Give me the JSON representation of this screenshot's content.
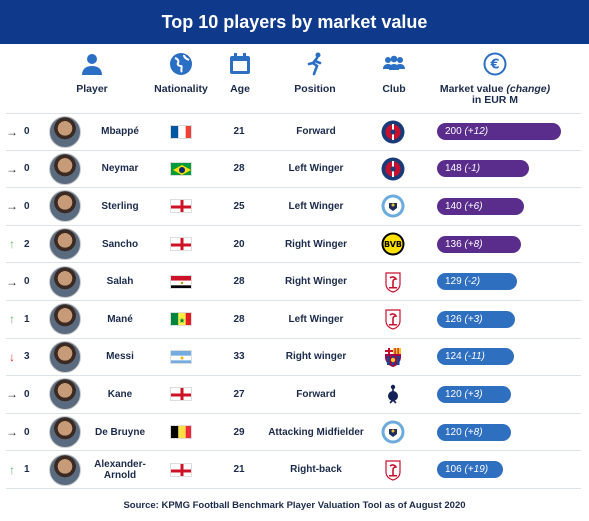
{
  "title": "Top 10 players by market value",
  "columns": {
    "player": "Player",
    "nationality": "Nationality",
    "age": "Age",
    "position": "Position",
    "club": "Club",
    "value_line1": "Market value",
    "value_change": "(change)",
    "value_line2": "in EUR M"
  },
  "icons": [
    "person-icon",
    "globe-icon",
    "calendar-icon",
    "runner-icon",
    "group-icon",
    "euro-icon"
  ],
  "colors": {
    "title_bg": "#0f3a8c",
    "up": "#5cb85c",
    "down": "#d9342b",
    "same": "#333333",
    "bar_purple": "#5a2d8c",
    "bar_blue": "#2f6fbf"
  },
  "players": [
    {
      "arrow": "→",
      "dir": "same",
      "change_rank": "0",
      "name": "Mbappé",
      "flag": "france",
      "age": "21",
      "position": "Forward",
      "club": "psg",
      "value": 200,
      "value_text": "200",
      "change_text": "(+12)",
      "bar_color": "purple"
    },
    {
      "arrow": "→",
      "dir": "same",
      "change_rank": "0",
      "name": "Neymar",
      "flag": "brazil",
      "age": "28",
      "position": "Left Winger",
      "club": "psg",
      "value": 148,
      "value_text": "148",
      "change_text": "(-1)",
      "bar_color": "purple"
    },
    {
      "arrow": "→",
      "dir": "same",
      "change_rank": "0",
      "name": "Sterling",
      "flag": "england",
      "age": "25",
      "position": "Left Winger",
      "club": "mancity",
      "value": 140,
      "value_text": "140",
      "change_text": "(+6)",
      "bar_color": "purple"
    },
    {
      "arrow": "↑",
      "dir": "up",
      "change_rank": "2",
      "name": "Sancho",
      "flag": "england",
      "age": "20",
      "position": "Right Winger",
      "club": "dortmund",
      "value": 136,
      "value_text": "136",
      "change_text": "(+8)",
      "bar_color": "purple"
    },
    {
      "arrow": "→",
      "dir": "same",
      "change_rank": "0",
      "name": "Salah",
      "flag": "egypt",
      "age": "28",
      "position": "Right Winger",
      "club": "liverpool",
      "value": 129,
      "value_text": "129",
      "change_text": "(-2)",
      "bar_color": "blue"
    },
    {
      "arrow": "↑",
      "dir": "up",
      "change_rank": "1",
      "name": "Mané",
      "flag": "senegal",
      "age": "28",
      "position": "Left Winger",
      "club": "liverpool",
      "value": 126,
      "value_text": "126",
      "change_text": "(+3)",
      "bar_color": "blue"
    },
    {
      "arrow": "↓",
      "dir": "down",
      "change_rank": "3",
      "name": "Messi",
      "flag": "argentina",
      "age": "33",
      "position": "Right winger",
      "club": "barcelona",
      "value": 124,
      "value_text": "124",
      "change_text": "(-11)",
      "bar_color": "blue"
    },
    {
      "arrow": "→",
      "dir": "same",
      "change_rank": "0",
      "name": "Kane",
      "flag": "england",
      "age": "27",
      "position": "Forward",
      "club": "tottenham",
      "value": 120,
      "value_text": "120",
      "change_text": "(+3)",
      "bar_color": "blue"
    },
    {
      "arrow": "→",
      "dir": "same",
      "change_rank": "0",
      "name": "De Bruyne",
      "flag": "belgium",
      "age": "29",
      "position": "Attacking Midfielder",
      "club": "mancity",
      "value": 120,
      "value_text": "120",
      "change_text": "(+8)",
      "bar_color": "blue"
    },
    {
      "arrow": "↑",
      "dir": "up",
      "change_rank": "1",
      "name": "Alexander-Arnold",
      "flag": "england",
      "age": "21",
      "position": "Right-back",
      "club": "liverpool",
      "value": 106,
      "value_text": "106",
      "change_text": "(+19)",
      "bar_color": "blue"
    }
  ],
  "source": "Source: KPMG Football Benchmark Player Valuation Tool as of August 2020"
}
